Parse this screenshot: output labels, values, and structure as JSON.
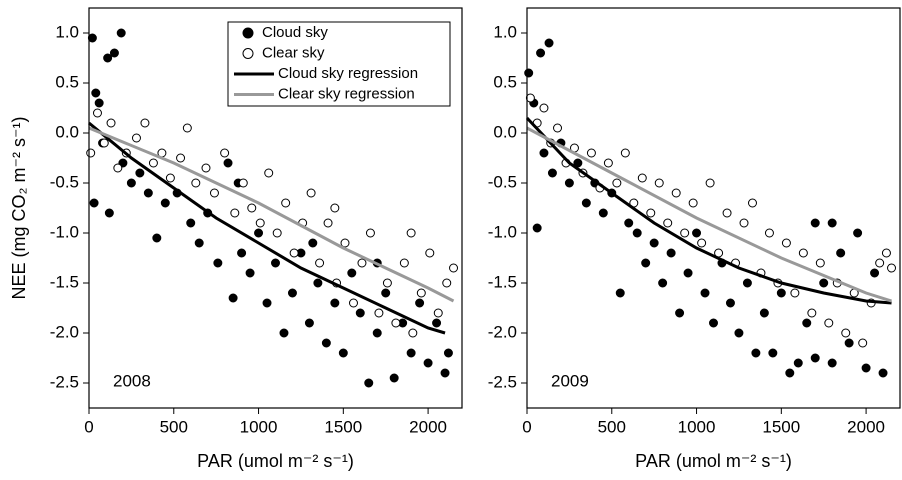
{
  "chart_data": [
    {
      "type": "scatter",
      "annotation": "2008",
      "y_label": "NEE (mg CO₂ m⁻² s⁻¹)",
      "x_label": "PAR (umol m⁻² s⁻¹)",
      "xlim": [
        0,
        2200
      ],
      "ylim": [
        -2.75,
        1.25
      ],
      "xticks": [
        0,
        500,
        1000,
        1500,
        2000
      ],
      "yticks": [
        {
          "value": 1,
          "label": "1.0"
        },
        0.5,
        {
          "value": 0,
          "label": "0.0"
        },
        -0.5,
        {
          "value": -1,
          "label": "-1.0"
        },
        -1.5,
        {
          "value": -2,
          "label": "-2.0"
        },
        -2.5
      ],
      "legend": "upper center",
      "series": [
        {
          "name": "Cloud sky",
          "style": "filled",
          "color": "#000000",
          "x": [
            20,
            40,
            60,
            110,
            150,
            190,
            30,
            80,
            120,
            200,
            250,
            300,
            350,
            400,
            450,
            520,
            600,
            650,
            700,
            760,
            820,
            850,
            900,
            950,
            1000,
            1050,
            1100,
            1150,
            1200,
            1250,
            1300,
            1350,
            1400,
            1450,
            1500,
            1550,
            1600,
            1650,
            1700,
            1750,
            1800,
            1850,
            1900,
            1950,
            2000,
            2050,
            2100,
            2120,
            880,
            1320,
            1700
          ],
          "values": [
            0.95,
            0.4,
            0.3,
            0.75,
            0.8,
            1.0,
            -0.7,
            -0.1,
            -0.8,
            -0.3,
            -0.5,
            -0.4,
            -0.6,
            -1.05,
            -0.7,
            -0.6,
            -0.9,
            -1.1,
            -0.8,
            -1.3,
            -0.3,
            -1.65,
            -1.2,
            -1.4,
            -1.0,
            -1.7,
            -1.3,
            -2.0,
            -1.6,
            -1.2,
            -1.9,
            -1.5,
            -2.1,
            -1.7,
            -2.2,
            -1.4,
            -1.8,
            -2.5,
            -2.0,
            -1.6,
            -2.45,
            -1.9,
            -2.2,
            -1.7,
            -2.3,
            -1.9,
            -2.4,
            -2.2,
            -0.5,
            -1.1,
            -1.3
          ]
        },
        {
          "name": "Clear sky",
          "style": "open",
          "color": "#ffffff",
          "edgecolor": "#000000",
          "x": [
            10,
            50,
            90,
            130,
            170,
            220,
            280,
            330,
            380,
            430,
            480,
            540,
            580,
            630,
            690,
            740,
            800,
            860,
            910,
            960,
            1010,
            1060,
            1110,
            1160,
            1210,
            1260,
            1310,
            1360,
            1410,
            1460,
            1510,
            1560,
            1610,
            1660,
            1710,
            1760,
            1810,
            1860,
            1910,
            1960,
            2010,
            2060,
            2110,
            2150,
            1450,
            1900
          ],
          "values": [
            -0.2,
            0.2,
            -0.1,
            0.1,
            -0.35,
            -0.2,
            -0.05,
            0.1,
            -0.3,
            -0.2,
            -0.45,
            -0.25,
            0.05,
            -0.5,
            -0.35,
            -0.6,
            -0.2,
            -0.8,
            -0.5,
            -0.75,
            -0.9,
            -0.4,
            -1.0,
            -0.7,
            -1.2,
            -0.9,
            -0.6,
            -1.3,
            -0.9,
            -1.5,
            -1.1,
            -1.7,
            -1.3,
            -1.0,
            -1.8,
            -1.5,
            -1.9,
            -1.3,
            -2.0,
            -1.6,
            -1.2,
            -1.8,
            -1.5,
            -1.35,
            -0.75,
            -1.0
          ]
        },
        {
          "name": "Cloud sky regression",
          "style": "line",
          "color": "#000000",
          "x": [
            0,
            250,
            500,
            750,
            1000,
            1250,
            1500,
            1750,
            2000,
            2100
          ],
          "values": [
            0.1,
            -0.25,
            -0.55,
            -0.85,
            -1.1,
            -1.35,
            -1.55,
            -1.75,
            -1.95,
            -2.0
          ]
        },
        {
          "name": "Clear sky regression",
          "style": "line",
          "color": "#999999",
          "x": [
            0,
            500,
            1000,
            1500,
            2000,
            2150
          ],
          "values": [
            0.05,
            -0.3,
            -0.7,
            -1.15,
            -1.55,
            -1.68
          ]
        }
      ]
    },
    {
      "type": "scatter",
      "annotation": "2009",
      "x_label": "PAR (umol m⁻² s⁻¹)",
      "xlim": [
        0,
        2200
      ],
      "ylim": [
        -2.75,
        1.25
      ],
      "xticks": [
        0,
        500,
        1000,
        1500,
        2000
      ],
      "yticks": [
        {
          "value": 1,
          "label": "1.0"
        },
        0.5,
        {
          "value": 0,
          "label": "0.0"
        },
        -0.5,
        {
          "value": -1,
          "label": "-1.0"
        },
        -1.5,
        {
          "value": -2,
          "label": "-2.0"
        },
        -2.5
      ],
      "series": [
        {
          "style": "filled",
          "color": "#000000",
          "x": [
            10,
            40,
            80,
            130,
            60,
            100,
            150,
            200,
            250,
            300,
            350,
            400,
            450,
            500,
            550,
            600,
            650,
            700,
            750,
            800,
            850,
            900,
            950,
            1000,
            1050,
            1100,
            1150,
            1200,
            1250,
            1300,
            1350,
            1400,
            1450,
            1500,
            1550,
            1600,
            1650,
            1700,
            1750,
            1800,
            1850,
            1900,
            1950,
            2000,
            2050,
            2100,
            1700,
            1800
          ],
          "values": [
            0.6,
            0.3,
            0.8,
            0.9,
            -0.95,
            -0.2,
            -0.4,
            -0.1,
            -0.5,
            -0.3,
            -0.7,
            -0.5,
            -0.8,
            -0.6,
            -1.6,
            -0.9,
            -1.0,
            -1.3,
            -1.1,
            -1.5,
            -1.2,
            -1.8,
            -1.4,
            -1.0,
            -1.6,
            -1.9,
            -1.3,
            -1.7,
            -2.0,
            -1.5,
            -2.2,
            -1.8,
            -2.2,
            -1.6,
            -2.4,
            -2.3,
            -1.9,
            -2.25,
            -1.5,
            -2.3,
            -1.2,
            -2.1,
            -1.0,
            -2.35,
            -1.4,
            -2.4,
            -0.9,
            -0.9
          ]
        },
        {
          "style": "open",
          "color": "#ffffff",
          "edgecolor": "#000000",
          "x": [
            20,
            60,
            100,
            140,
            180,
            230,
            280,
            330,
            380,
            430,
            480,
            530,
            580,
            630,
            680,
            730,
            780,
            830,
            880,
            930,
            980,
            1030,
            1080,
            1130,
            1180,
            1230,
            1280,
            1330,
            1380,
            1430,
            1480,
            1530,
            1580,
            1630,
            1680,
            1730,
            1780,
            1830,
            1880,
            1930,
            1980,
            2030,
            2080,
            2150,
            2120
          ],
          "values": [
            0.35,
            0.1,
            0.25,
            -0.1,
            0.05,
            -0.3,
            -0.15,
            -0.4,
            -0.2,
            -0.55,
            -0.3,
            -0.5,
            -0.2,
            -0.7,
            -0.45,
            -0.8,
            -0.5,
            -0.9,
            -0.6,
            -1.0,
            -0.7,
            -1.1,
            -0.5,
            -1.2,
            -0.8,
            -1.3,
            -0.9,
            -0.7,
            -1.4,
            -1.0,
            -1.5,
            -1.1,
            -1.6,
            -1.2,
            -1.8,
            -1.3,
            -1.9,
            -1.5,
            -2.0,
            -1.6,
            -2.1,
            -1.7,
            -1.3,
            -1.35,
            -1.2
          ]
        },
        {
          "style": "line",
          "color": "#000000",
          "x": [
            0,
            250,
            500,
            750,
            1000,
            1250,
            1500,
            1750,
            2000,
            2150
          ],
          "values": [
            0.15,
            -0.3,
            -0.6,
            -0.9,
            -1.15,
            -1.35,
            -1.5,
            -1.6,
            -1.68,
            -1.7
          ]
        },
        {
          "style": "line",
          "color": "#999999",
          "x": [
            0,
            500,
            1000,
            1500,
            2000,
            2150
          ],
          "values": [
            0.05,
            -0.4,
            -0.85,
            -1.25,
            -1.6,
            -1.68
          ]
        }
      ]
    }
  ]
}
